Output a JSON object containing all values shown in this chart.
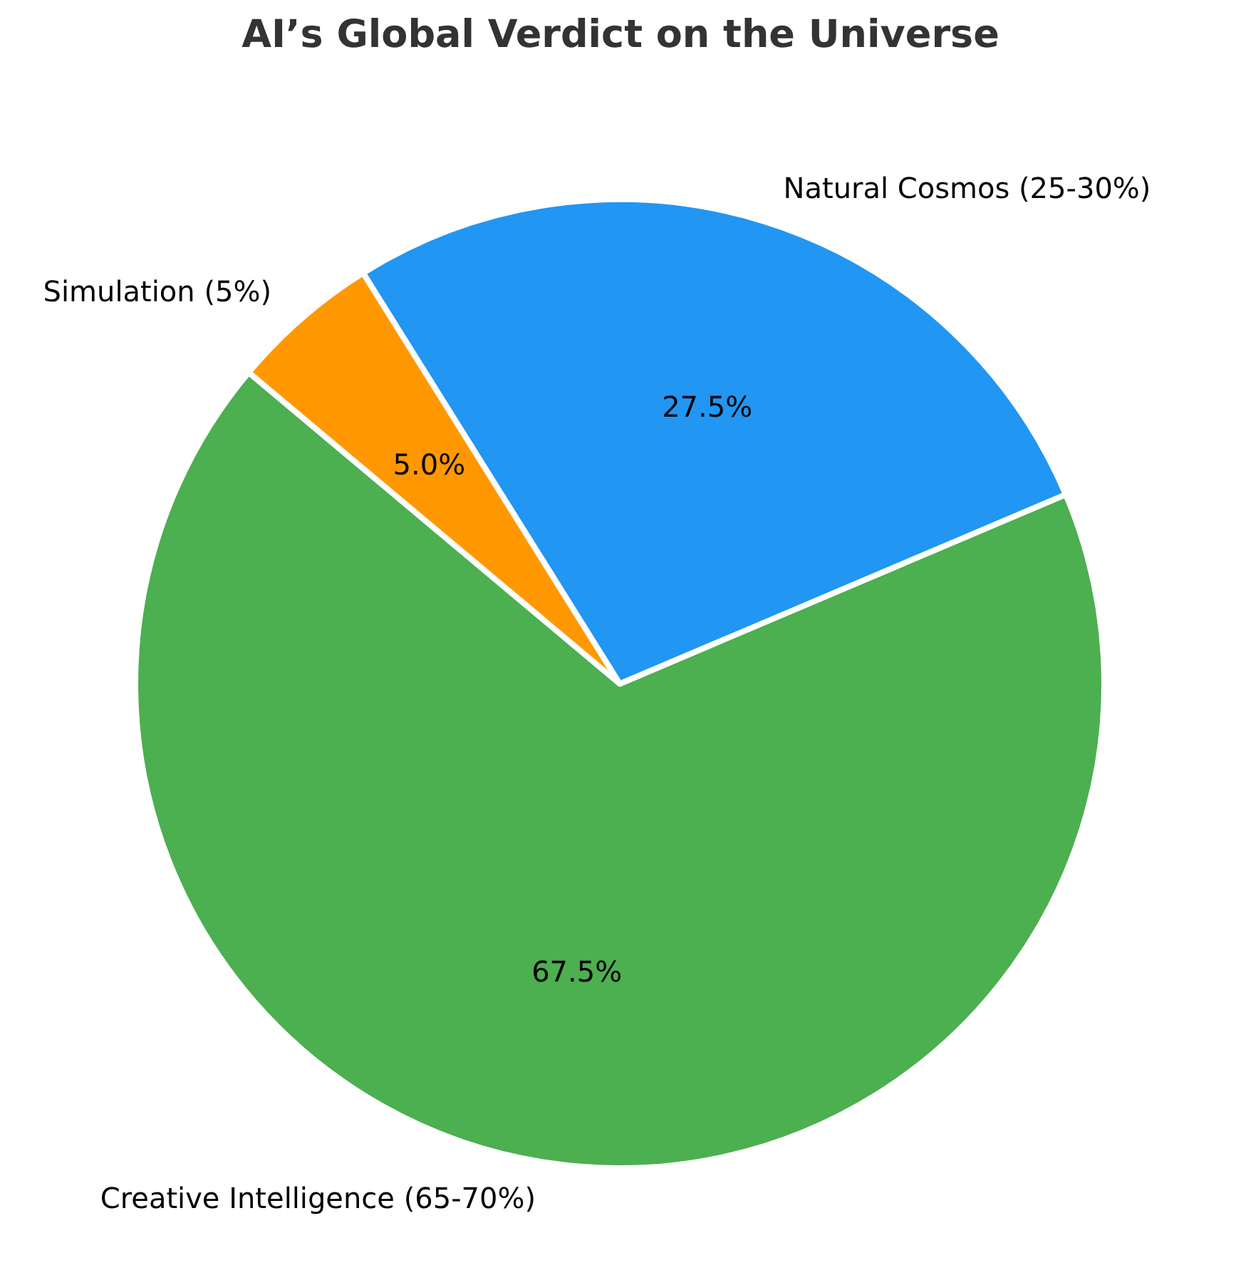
{
  "chart_data": {
    "type": "pie",
    "title": "AI’s Global Verdict on the Universe",
    "categories": [
      "Creative Intelligence (65-70%)",
      "Natural Cosmos (25-30%)",
      "Simulation (5%)"
    ],
    "values": [
      67.5,
      27.5,
      5.0
    ],
    "colors": [
      "#4caf50",
      "#2196f3",
      "#ff9800"
    ],
    "value_labels": [
      "67.5%",
      "27.5%",
      "5.0%"
    ],
    "legend": false
  }
}
